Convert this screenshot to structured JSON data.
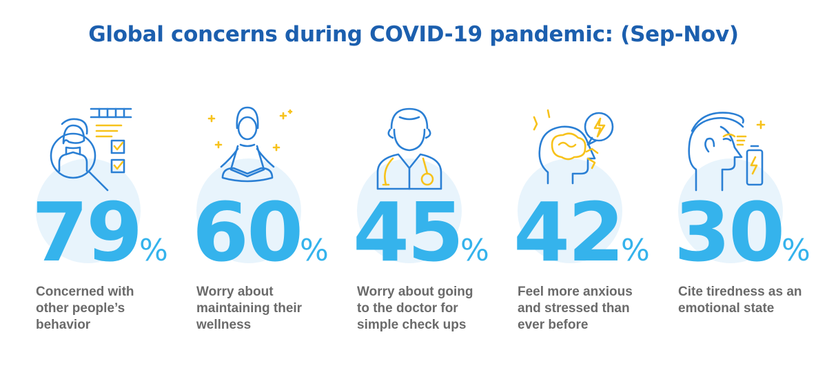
{
  "title": "Global concerns during COVID-19 pandemic: (Sep-Nov)",
  "colors": {
    "title": "#1c5fae",
    "figure": "#35b3ec",
    "caption": "#6a6a6a",
    "icon_line": "#2a7fd4",
    "icon_accent": "#f7c21b",
    "halo": "#e8f4fc"
  },
  "stats": [
    {
      "value": "79",
      "unit": "%",
      "caption": "Concerned with other people’s behavior",
      "icon": "magnifier-person-checklist-icon"
    },
    {
      "value": "60",
      "unit": "%",
      "caption": "Worry about maintaining their wellness",
      "icon": "meditating-woman-icon"
    },
    {
      "value": "45",
      "unit": "%",
      "caption": "Worry about going to the doctor for simple check ups",
      "icon": "doctor-stethoscope-icon"
    },
    {
      "value": "42",
      "unit": "%",
      "caption": "Feel more anxious and stressed than ever before",
      "icon": "anxious-brain-icon"
    },
    {
      "value": "30",
      "unit": "%",
      "caption": "Cite tiredness as an emotional state",
      "icon": "tired-face-battery-icon"
    }
  ],
  "chart_data": {
    "type": "bar",
    "title": "Global concerns during COVID-19 pandemic: (Sep-Nov)",
    "categories": [
      "Concerned with other people’s behavior",
      "Worry about maintaining their wellness",
      "Worry about going to the doctor for simple check ups",
      "Feel more anxious and stressed than ever before",
      "Cite tiredness as an emotional state"
    ],
    "values": [
      79,
      60,
      45,
      42,
      30
    ],
    "unit": "%",
    "xlabel": "",
    "ylabel": "",
    "ylim": [
      0,
      100
    ]
  }
}
